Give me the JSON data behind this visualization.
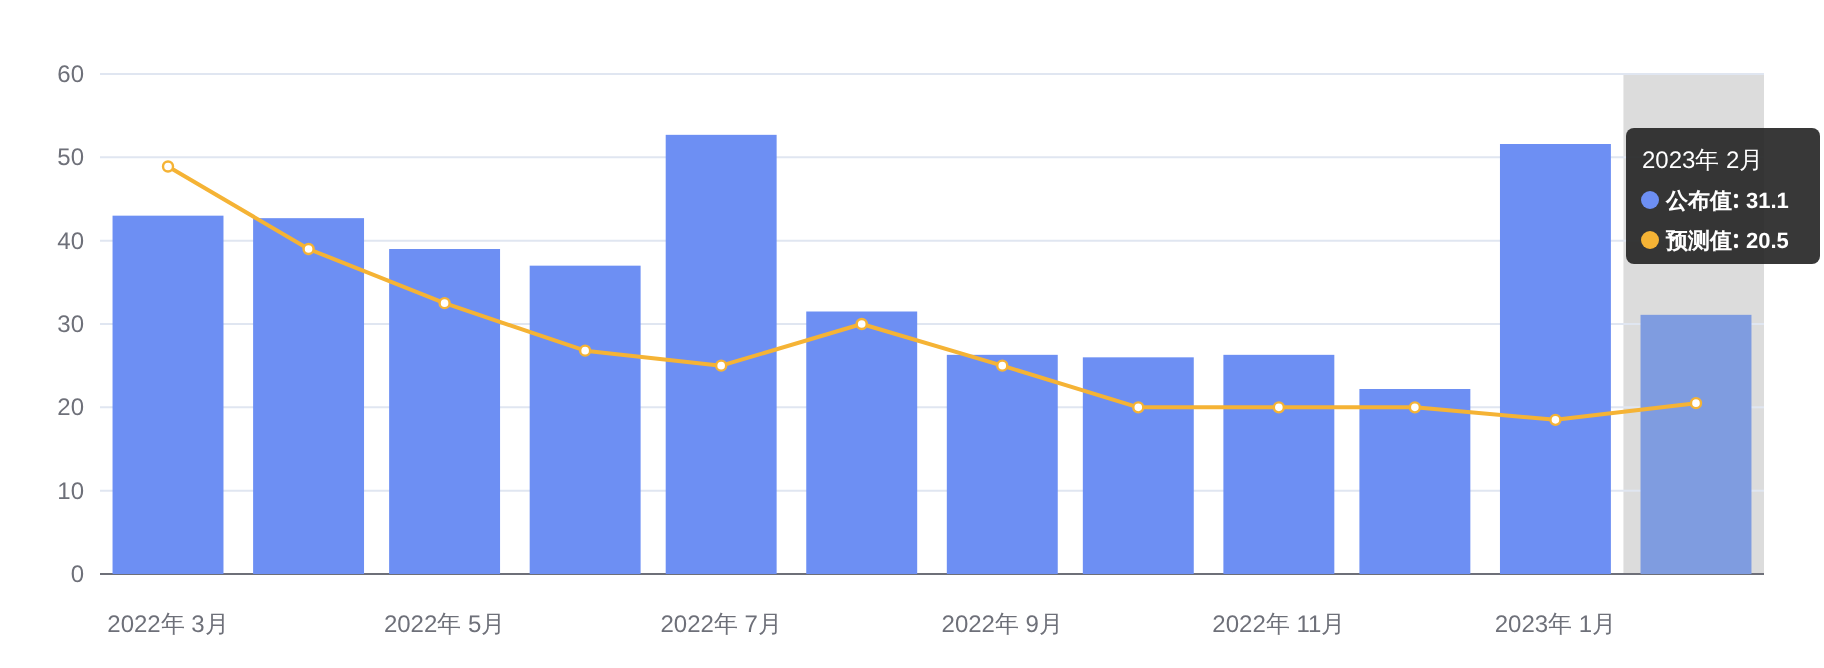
{
  "chart_data": {
    "type": "bar",
    "x": [
      "2022-03",
      "2022-04",
      "2022-05",
      "2022-06",
      "2022-07",
      "2022-08",
      "2022-09",
      "2022-10",
      "2022-11",
      "2022-12",
      "2023-01",
      "2023-02"
    ],
    "xlim": [
      "2022-02-14",
      "2023-02-16"
    ],
    "xticks": [
      {
        "value": "2022-03",
        "label": "2022年 3月"
      },
      {
        "value": "2022-05",
        "label": "2022年 5月"
      },
      {
        "value": "2022-07",
        "label": "2022年 7月"
      },
      {
        "value": "2022-09",
        "label": "2022年 9月"
      },
      {
        "value": "2022-11",
        "label": "2022年 11月"
      },
      {
        "value": "2023-01",
        "label": "2023年 1月"
      }
    ],
    "series": [
      {
        "name": "公布值",
        "color": "#6d8ff3",
        "colors": [
          "#6d8ff3",
          "#6d8ff3",
          "#6d8ff3",
          "#6d8ff3",
          "#6d8ff3",
          "#6d8ff3",
          "#6d8ff3",
          "#6d8ff3",
          "#6d8ff3",
          "#6d8ff3",
          "#6d8ff3",
          "#7f9ce0"
        ],
        "values": [
          43,
          42.7,
          39,
          37,
          52.7,
          31.5,
          26.3,
          26,
          26.3,
          22.2,
          51.6,
          31.1
        ]
      },
      {
        "name": "预测值",
        "type": "line",
        "color": "#f5b335",
        "marker": "circle",
        "values": [
          48.9,
          39,
          32.5,
          26.8,
          25,
          30,
          25,
          20,
          20,
          20,
          18.5,
          20.5
        ]
      }
    ],
    "ylim": [
      0,
      60
    ],
    "yticks": [
      0,
      10,
      20,
      30,
      40,
      50,
      60
    ],
    "grid": "y",
    "legend": "top right",
    "annotations": [
      "2023年 2月",
      "31.1",
      "20.5"
    ],
    "bands": [
      {
        "axis": "x",
        "from": "2023-01-16",
        "to": "2023-02-16",
        "color": "#dcdcdc"
      }
    ]
  }
}
